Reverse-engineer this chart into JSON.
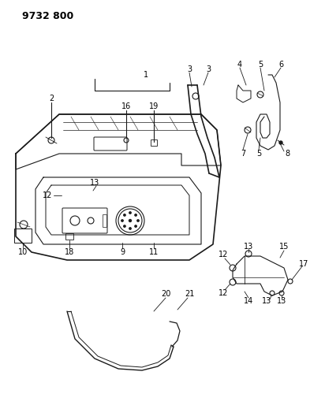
{
  "title": "9732 800",
  "bg_color": "#ffffff",
  "line_color": "#1a1a1a",
  "text_color": "#000000",
  "title_fontsize": 9,
  "label_fontsize": 7
}
